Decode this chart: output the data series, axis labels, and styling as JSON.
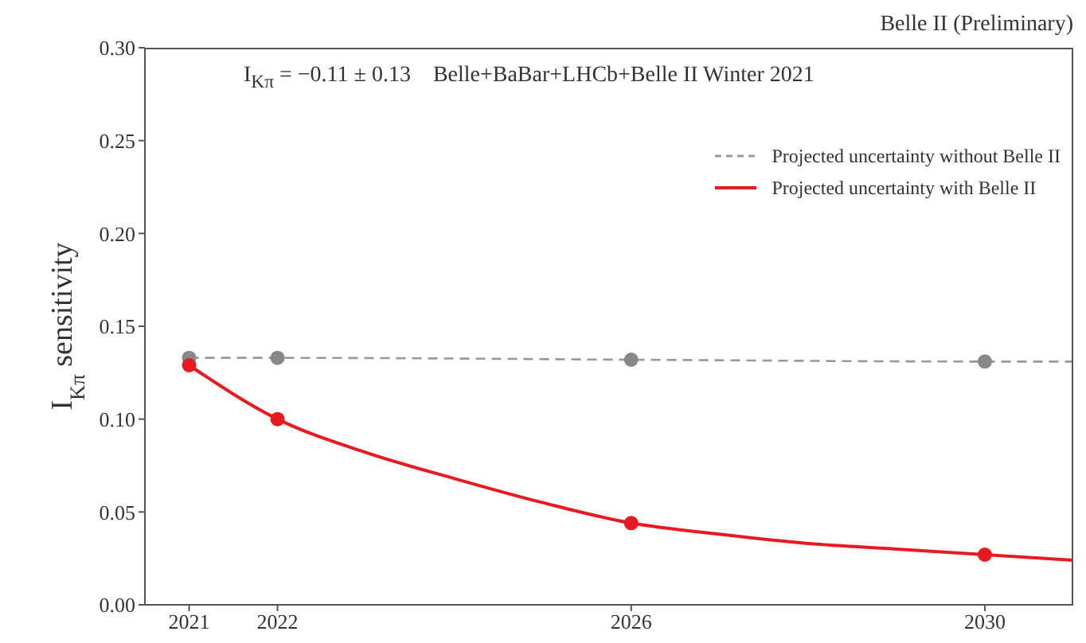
{
  "chart_data": {
    "type": "line",
    "title": "Belle II (Preliminary)",
    "ylabel": "I$_{Kπ}$ sensitivity",
    "annotations": [
      "I$_{Kπ}$ = −0.11 ± 0.13    Belle+BaBar+LHCb+Belle II Winter 2021"
    ],
    "series": [
      {
        "name": "Projected uncertainty without Belle II",
        "color": "#999999",
        "line_style": "dashed",
        "marker": "none",
        "x": [
          2021,
          2022,
          2026,
          2030,
          2031
        ],
        "values": [
          0.133,
          0.133,
          0.132,
          0.131,
          0.131
        ]
      },
      {
        "name": "Projected uncertainty with Belle II",
        "color": "#e8191f",
        "line_style": "solid",
        "marker": "none",
        "x": [
          2021,
          2022,
          2023,
          2024,
          2025,
          2026,
          2027,
          2028,
          2029,
          2030,
          2031
        ],
        "values": [
          0.129,
          0.1,
          0.082,
          0.068,
          0.055,
          0.044,
          0.038,
          0.033,
          0.03,
          0.027,
          0.024
        ]
      },
      {
        "type": "scatter",
        "color": "#888888",
        "marker": "circle",
        "x": [
          2021,
          2022,
          2026,
          2030
        ],
        "values": [
          0.133,
          0.133,
          0.132,
          0.131
        ]
      },
      {
        "type": "scatter",
        "color": "#e8191f",
        "marker": "circle",
        "x": [
          2021,
          2022,
          2026,
          2030
        ],
        "values": [
          0.129,
          0.1,
          0.044,
          0.027
        ]
      }
    ],
    "xlim": [
      2020.5,
      2031
    ],
    "xticks": [
      2021,
      2022,
      2026,
      2030
    ],
    "ylim": [
      0,
      0.3
    ],
    "yticks": [
      {
        "value": 0,
        "label": "0.00"
      },
      0.05,
      {
        "value": 0.1,
        "label": "0.10"
      },
      0.15,
      {
        "value": 0.2,
        "label": "0.20"
      },
      0.25,
      {
        "value": 0.3,
        "label": "0.30"
      }
    ],
    "grid": false,
    "legend": "top right"
  }
}
